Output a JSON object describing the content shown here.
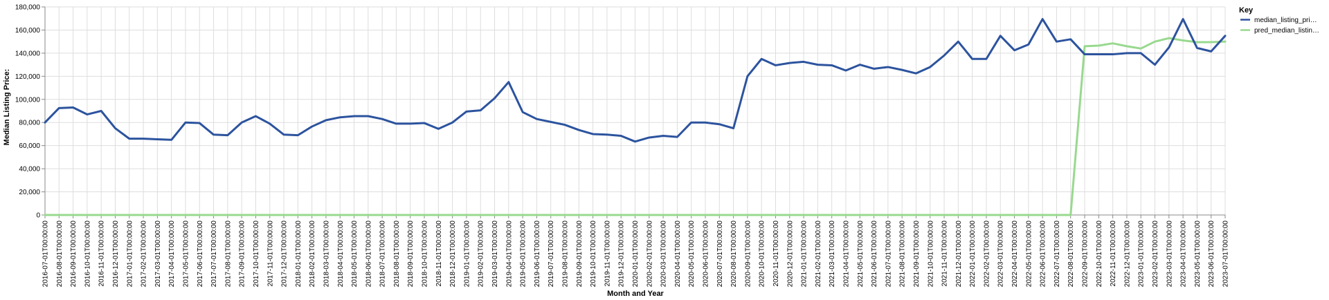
{
  "chart_data": {
    "type": "line",
    "title": "",
    "xlabel": "Month and Year",
    "ylabel": "Median Listing Price:",
    "ylim": [
      0,
      180000
    ],
    "yticks": [
      0,
      20000,
      40000,
      60000,
      80000,
      100000,
      120000,
      140000,
      160000,
      180000
    ],
    "ytick_labels": [
      "0",
      "20,000",
      "40,000",
      "60,000",
      "80,000",
      "100,000",
      "120,000",
      "140,000",
      "160,000",
      "180,000"
    ],
    "grid": true,
    "legend_position": "top-right",
    "legend_title": "Key",
    "categories": [
      "2016-07-01T00:00:00",
      "2016-08-01T00:00:00",
      "2016-09-01T00:00:00",
      "2016-10-01T00:00:00",
      "2016-11-01T00:00:00",
      "2016-12-01T00:00:00",
      "2017-01-01T00:00:00",
      "2017-02-01T00:00:00",
      "2017-03-01T00:00:00",
      "2017-04-01T00:00:00",
      "2017-05-01T00:00:00",
      "2017-06-01T00:00:00",
      "2017-07-01T00:00:00",
      "2017-08-01T00:00:00",
      "2017-09-01T00:00:00",
      "2017-10-01T00:00:00",
      "2017-11-01T00:00:00",
      "2017-12-01T00:00:00",
      "2018-01-01T00:00:00",
      "2018-02-01T00:00:00",
      "2018-03-01T00:00:00",
      "2018-04-01T00:00:00",
      "2018-05-01T00:00:00",
      "2018-06-01T00:00:00",
      "2018-07-01T00:00:00",
      "2018-08-01T00:00:00",
      "2018-09-01T00:00:00",
      "2018-10-01T00:00:00",
      "2018-11-01T00:00:00",
      "2018-12-01T00:00:00",
      "2019-01-01T00:00:00",
      "2019-02-01T00:00:00",
      "2019-03-01T00:00:00",
      "2019-04-01T00:00:00",
      "2019-05-01T00:00:00",
      "2019-06-01T00:00:00",
      "2019-07-01T00:00:00",
      "2019-08-01T00:00:00",
      "2019-09-01T00:00:00",
      "2019-10-01T00:00:00",
      "2019-11-01T00:00:00",
      "2019-12-01T00:00:00",
      "2020-01-01T00:00:00",
      "2020-02-01T00:00:00",
      "2020-03-01T00:00:00",
      "2020-04-01T00:00:00",
      "2020-05-01T00:00:00",
      "2020-06-01T00:00:00",
      "2020-07-01T00:00:00",
      "2020-08-01T00:00:00",
      "2020-09-01T00:00:00",
      "2020-10-01T00:00:00",
      "2020-11-01T00:00:00",
      "2020-12-01T00:00:00",
      "2021-01-01T00:00:00",
      "2021-02-01T00:00:00",
      "2021-03-01T00:00:00",
      "2021-04-01T00:00:00",
      "2021-05-01T00:00:00",
      "2021-06-01T00:00:00",
      "2021-07-01T00:00:00",
      "2021-08-01T00:00:00",
      "2021-09-01T00:00:00",
      "2021-10-01T00:00:00",
      "2021-11-01T00:00:00",
      "2021-12-01T00:00:00",
      "2022-01-01T00:00:00",
      "2022-02-01T00:00:00",
      "2022-03-01T00:00:00",
      "2022-04-01T00:00:00",
      "2022-05-01T00:00:00",
      "2022-06-01T00:00:00",
      "2022-07-01T00:00:00",
      "2022-08-01T00:00:00",
      "2022-09-01T00:00:00",
      "2022-10-01T00:00:00",
      "2022-11-01T00:00:00",
      "2022-12-01T00:00:00",
      "2023-01-01T00:00:00",
      "2023-02-01T00:00:00",
      "2023-03-01T00:00:00",
      "2023-04-01T00:00:00",
      "2023-05-01T00:00:00",
      "2023-06-01T00:00:00",
      "2023-07-01T00:00:00"
    ],
    "series": [
      {
        "name": "median_listing_pri…",
        "color": "#2c539e",
        "values": [
          80000,
          92500,
          93000,
          87000,
          90000,
          75000,
          66000,
          66000,
          65500,
          65000,
          80000,
          79500,
          69500,
          69000,
          80000,
          85500,
          79000,
          69500,
          69000,
          76500,
          82000,
          84500,
          85500,
          85500,
          83000,
          79000,
          79000,
          79500,
          74500,
          80000,
          89500,
          90500,
          101000,
          115000,
          89000,
          83000,
          80500,
          78000,
          73500,
          70000,
          69500,
          68500,
          63500,
          67000,
          68500,
          67500,
          80000,
          80000,
          78500,
          75000,
          120000,
          135000,
          129500,
          131500,
          132500,
          130000,
          129500,
          125000,
          130000,
          126500,
          128000,
          125500,
          122500,
          128000,
          138000,
          150000,
          135000,
          135000,
          155000,
          142500,
          147500,
          169500,
          150000,
          152000,
          139000,
          139000,
          139000,
          140000,
          140000,
          130000,
          145000,
          169500,
          144500,
          141500,
          155000
        ]
      },
      {
        "name": "pred_median_listin…",
        "color": "#98d98e",
        "values": [
          0,
          0,
          0,
          0,
          0,
          0,
          0,
          0,
          0,
          0,
          0,
          0,
          0,
          0,
          0,
          0,
          0,
          0,
          0,
          0,
          0,
          0,
          0,
          0,
          0,
          0,
          0,
          0,
          0,
          0,
          0,
          0,
          0,
          0,
          0,
          0,
          0,
          0,
          0,
          0,
          0,
          0,
          0,
          0,
          0,
          0,
          0,
          0,
          0,
          0,
          0,
          0,
          0,
          0,
          0,
          0,
          0,
          0,
          0,
          0,
          0,
          0,
          0,
          0,
          0,
          0,
          0,
          0,
          0,
          0,
          0,
          0,
          0,
          0,
          146000,
          146500,
          148500,
          146000,
          144000,
          150000,
          153000,
          151000,
          149500,
          149500,
          150000
        ]
      }
    ]
  }
}
